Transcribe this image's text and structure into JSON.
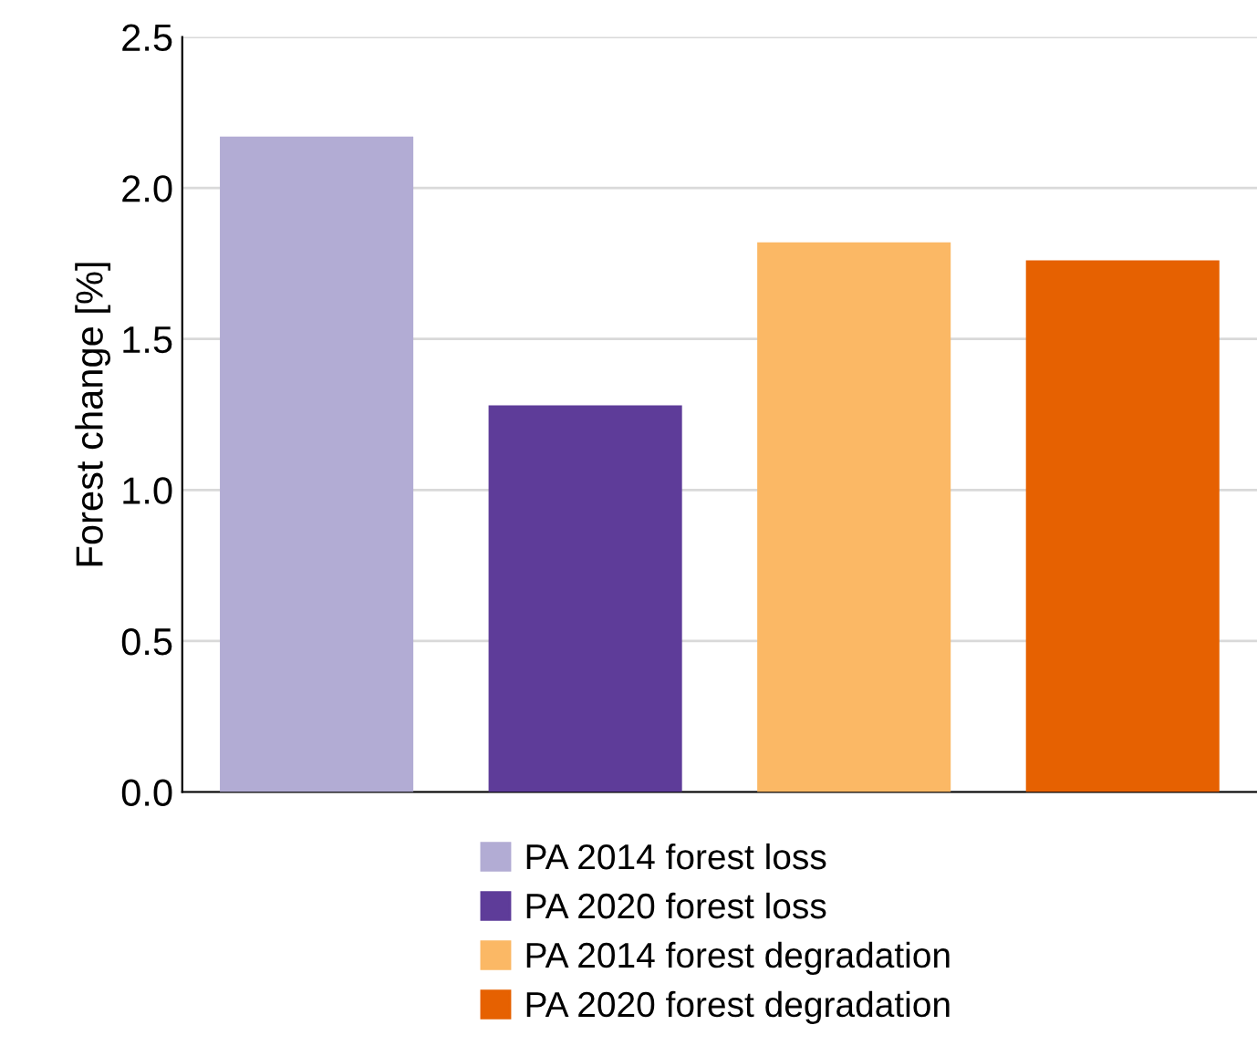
{
  "chart_data": {
    "type": "bar",
    "ylabel": "Forest change [%]",
    "categories": [
      null,
      null,
      null,
      null
    ],
    "series": [
      {
        "name": "PA 2014 forest loss",
        "color": "#b2acd4",
        "values": [
          2.17,
          null,
          null,
          null
        ]
      },
      {
        "name": "PA 2020 forest loss",
        "color": "#5e3c99",
        "values": [
          null,
          1.28,
          null,
          null
        ]
      },
      {
        "name": "PA 2014 forest degradation",
        "color": "#fbb865",
        "values": [
          null,
          null,
          1.82,
          null
        ]
      },
      {
        "name": "PA 2020 forest degradation",
        "color": "#e66101",
        "values": [
          null,
          null,
          null,
          1.76
        ]
      }
    ],
    "ylim": [
      0,
      2.5
    ],
    "yticks": [
      {
        "value": 0,
        "label": "0.0"
      },
      {
        "value": 0.5,
        "label": "0.5"
      },
      {
        "value": 1,
        "label": "1.0"
      },
      {
        "value": 1.5,
        "label": "1.5"
      },
      {
        "value": 2,
        "label": "2.0"
      },
      {
        "value": 2.5,
        "label": "2.5"
      }
    ],
    "grid": "y",
    "legend": "bottom",
    "tick_labels": "y"
  }
}
